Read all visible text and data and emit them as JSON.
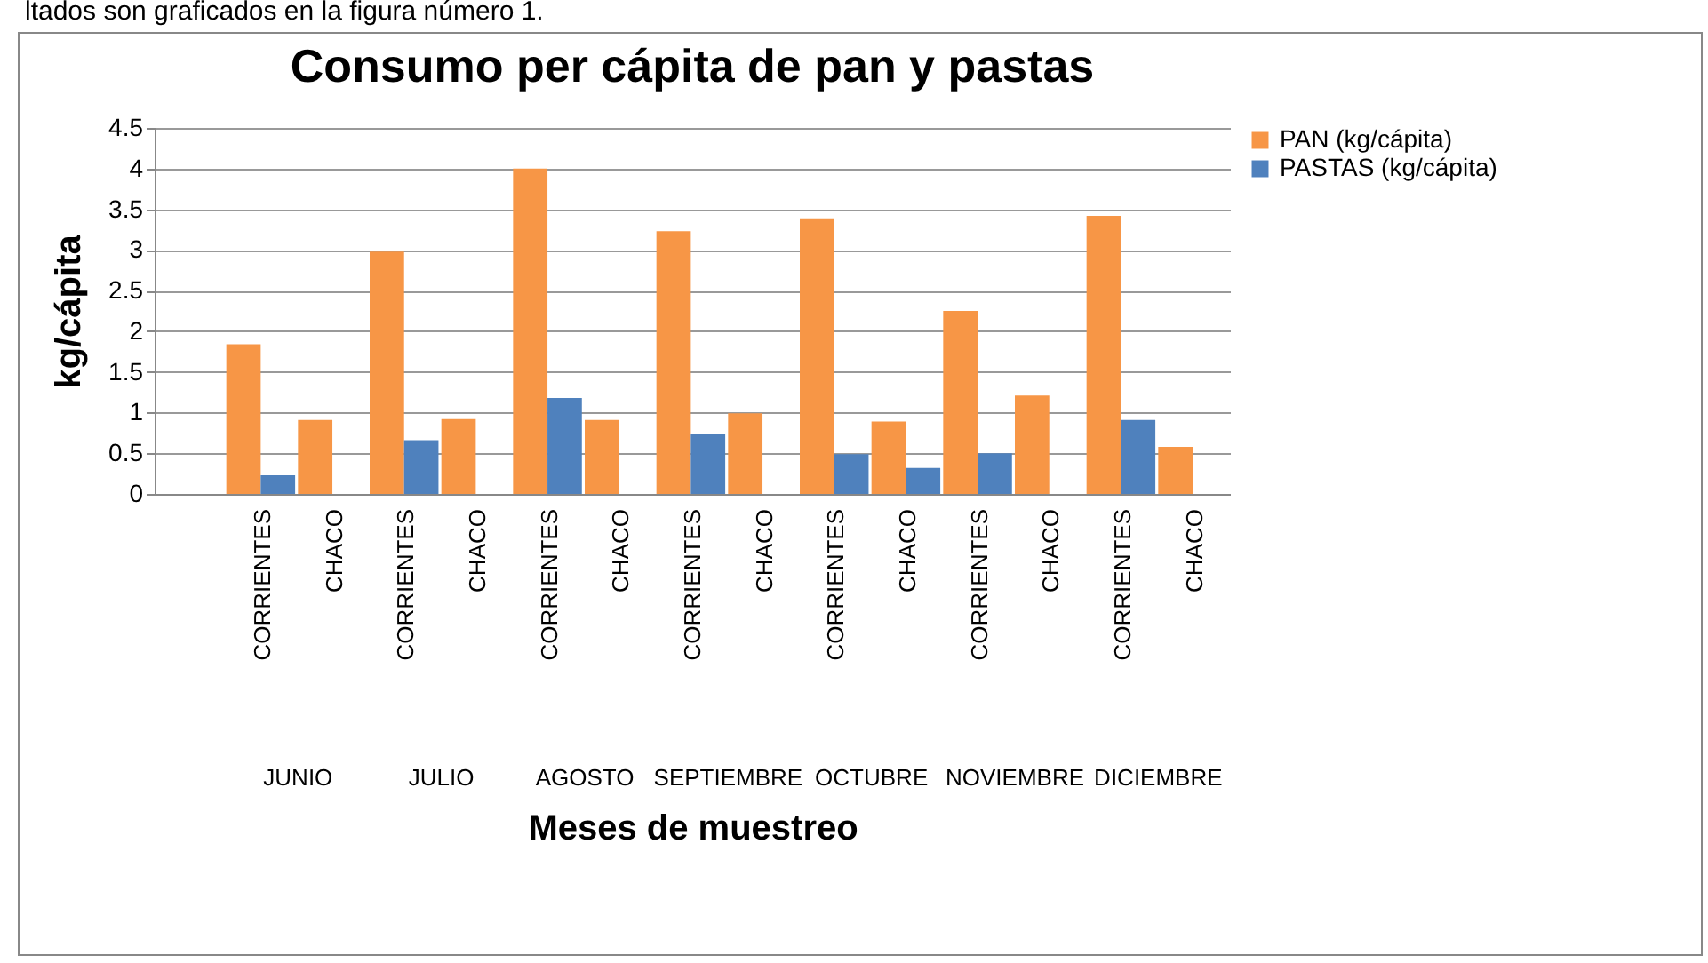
{
  "chart_data": {
    "type": "bar",
    "title": "Consumo per cápita de pan y pastas",
    "xlabel": "Meses de muestreo",
    "ylabel": "kg/cápita",
    "categories": [
      null,
      "CORRIENTES",
      "CHACO",
      "CORRIENTES",
      "CHACO",
      "CORRIENTES",
      "CHACO",
      "CORRIENTES",
      "CHACO",
      "CORRIENTES",
      "CHACO",
      "CORRIENTES",
      "CHACO",
      "CORRIENTES",
      "CHACO"
    ],
    "series": [
      {
        "name": "PAN (kg/cápita)",
        "color": "#f79646",
        "values": [
          null,
          1.84,
          0.91,
          2.98,
          0.92,
          4.0,
          0.91,
          3.23,
          0.99,
          3.39,
          0.89,
          2.25,
          1.21,
          3.42,
          0.58
        ]
      },
      {
        "name": "PASTAS (kg/cápita)",
        "color": "#4f81bd",
        "values": [
          null,
          0.23,
          null,
          0.66,
          null,
          1.18,
          null,
          0.74,
          null,
          0.49,
          0.32,
          0.5,
          null,
          0.91,
          null
        ]
      }
    ],
    "ylim": [
      0,
      4.5
    ],
    "yticks": [
      0,
      0.5,
      1,
      1.5,
      2,
      2.5,
      3,
      3.5,
      4,
      4.5
    ],
    "grid": "y",
    "legend": "right",
    "annotations": [
      "ltados son graficados en la figura número 1.",
      "JUNIO",
      "JULIO",
      "AGOSTO",
      "SEPTIEMBRE",
      "OCTUBRE",
      "NOVIEMBRE",
      "DICIEMBRE"
    ]
  }
}
